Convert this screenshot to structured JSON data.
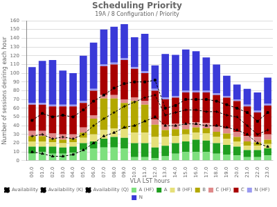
{
  "chart_data": {
    "type": "bar",
    "title": "Scheduling Priority",
    "subtitle": "19A / 8 Configuration / Priority",
    "x_label": "VLA LST hours",
    "y_label": "Number of sessions desiring each hour",
    "categories": [
      "00.0",
      "01.0",
      "02.0",
      "03.0",
      "04.0",
      "05.0",
      "06.0",
      "07.0",
      "08.0",
      "09.0",
      "10.0",
      "11.0",
      "12.0",
      "13.0",
      "14.0",
      "15.0",
      "16.0",
      "17.0",
      "18.0",
      "19.0",
      "20.0",
      "21.0",
      "22.0",
      "23.0"
    ],
    "stacked": true,
    "grid": true,
    "legend": "bottom",
    "ylim": [
      0,
      160
    ],
    "yticks": [
      0,
      10,
      20,
      30,
      40,
      50,
      60,
      70,
      80,
      90,
      100,
      110,
      120,
      130,
      140,
      150,
      160
    ],
    "series": [
      {
        "name": "A (HF)",
        "color": "#7ee07e",
        "values": [
          8,
          10,
          8,
          8,
          9,
          12,
          14,
          15,
          15,
          14,
          4,
          4,
          3,
          5,
          8,
          10,
          10,
          10,
          8,
          7,
          6,
          4,
          4,
          6
        ]
      },
      {
        "name": "A",
        "color": "#1f9e1f",
        "values": [
          8,
          6,
          8,
          7,
          7,
          8,
          8,
          10,
          12,
          12,
          16,
          16,
          12,
          12,
          12,
          12,
          14,
          13,
          12,
          11,
          10,
          8,
          8,
          8
        ]
      },
      {
        "name": "B (HF)",
        "color": "#e6e07a",
        "values": [
          6,
          6,
          5,
          5,
          5,
          6,
          8,
          10,
          10,
          10,
          12,
          12,
          12,
          10,
          8,
          8,
          8,
          8,
          7,
          7,
          6,
          5,
          5,
          5
        ]
      },
      {
        "name": "B",
        "color": "#b3a800",
        "values": [
          6,
          6,
          4,
          4,
          4,
          6,
          18,
          36,
          34,
          30,
          36,
          32,
          14,
          8,
          8,
          6,
          6,
          6,
          6,
          6,
          5,
          5,
          4,
          5
        ]
      },
      {
        "name": "C (HF)",
        "color": "#e08a8a",
        "values": [
          6,
          6,
          6,
          6,
          5,
          6,
          4,
          4,
          4,
          4,
          4,
          4,
          6,
          6,
          6,
          6,
          6,
          6,
          6,
          6,
          6,
          6,
          6,
          6
        ]
      },
      {
        "name": "C",
        "color": "#a80000",
        "values": [
          30,
          30,
          31,
          32,
          32,
          28,
          28,
          33,
          35,
          45,
          33,
          32,
          33,
          29,
          30,
          36,
          34,
          35,
          36,
          35,
          35,
          34,
          28,
          33
        ]
      },
      {
        "name": "N (HF)",
        "color": "#9a9af0",
        "values": [
          2,
          2,
          2,
          2,
          2,
          2,
          2,
          2,
          2,
          2,
          2,
          2,
          2,
          2,
          2,
          2,
          2,
          2,
          2,
          2,
          2,
          2,
          2,
          2
        ]
      },
      {
        "name": "N",
        "color": "#3a3ad8",
        "values": [
          41,
          48,
          51,
          39,
          36,
          52,
          53,
          40,
          41,
          39,
          34,
          43,
          27,
          50,
          47,
          47,
          45,
          38,
          33,
          23,
          17,
          18,
          21,
          30
        ]
      },
      {
        "name": "Availability",
        "type": "line",
        "color": "#000000",
        "marker": "rect",
        "line_style": "dashed",
        "values": [
          46,
          54,
          50,
          52,
          50,
          58,
          68,
          75,
          83,
          88,
          90,
          90,
          92,
          60,
          63,
          70,
          70,
          70,
          68,
          64,
          60,
          55,
          45,
          55
        ]
      },
      {
        "name": "Availability (K)",
        "type": "line",
        "color": "#000000",
        "marker": "cross",
        "line_style": "dashed",
        "values": [
          28,
          30,
          25,
          27,
          25,
          30,
          40,
          48,
          55,
          62,
          67,
          72,
          75,
          52,
          55,
          58,
          58,
          56,
          56,
          52,
          50,
          40,
          30,
          35
        ]
      },
      {
        "name": "Availability (Q)",
        "type": "line",
        "color": "#000000",
        "marker": "triangle",
        "line_style": "dashed",
        "values": [
          10,
          8,
          5,
          5,
          7,
          12,
          20,
          28,
          32,
          38,
          40,
          45,
          50,
          40,
          40,
          42,
          42,
          40,
          40,
          38,
          35,
          30,
          20,
          16
        ]
      }
    ]
  }
}
